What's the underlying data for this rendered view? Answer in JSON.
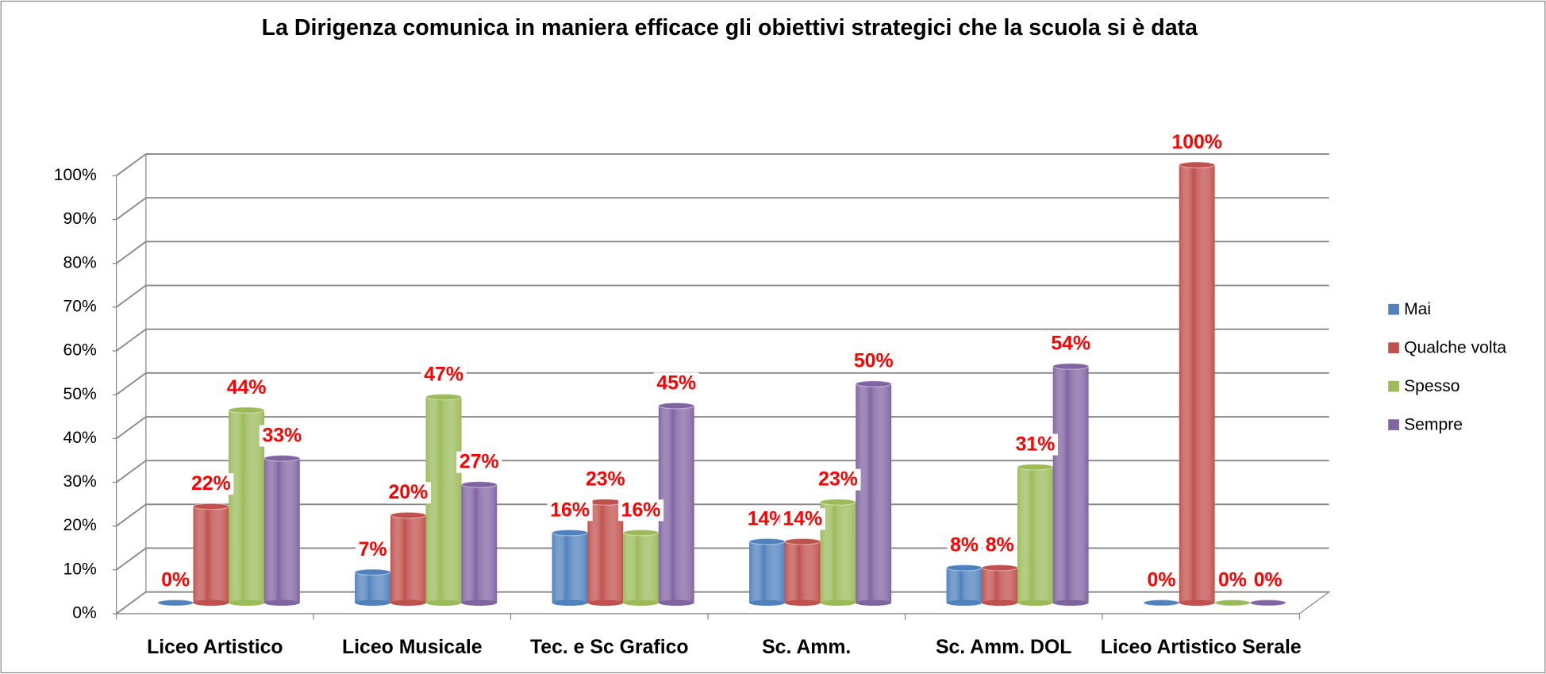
{
  "chart_data": {
    "type": "bar",
    "title": "La Dirigenza comunica in maniera efficace gli obiettivi strategici che la scuola si è data",
    "categories": [
      "Liceo Artistico",
      "Liceo Musicale",
      "Tec.  e Sc Grafico",
      "Sc. Amm.",
      "Sc. Amm. DOL",
      "Liceo Artistico Serale"
    ],
    "series": [
      {
        "name": "Mai",
        "color": "#4f81bd",
        "values": [
          0,
          7,
          16,
          14,
          8,
          0
        ],
        "value_labels": [
          "0%",
          "7%",
          "16%",
          "14%",
          "8%",
          "0%"
        ]
      },
      {
        "name": "Qualche volta",
        "color": "#c0504d",
        "values": [
          22,
          20,
          23,
          14,
          8,
          100
        ],
        "value_labels": [
          "22%",
          "20%",
          "23%",
          "14%",
          "8%",
          "100%"
        ]
      },
      {
        "name": "Spesso",
        "color": "#9bbb59",
        "values": [
          44,
          47,
          16,
          23,
          31,
          0
        ],
        "value_labels": [
          "44%",
          "47%",
          "16%",
          "23%",
          "31%",
          "0%"
        ]
      },
      {
        "name": "Sempre",
        "color": "#8064a2",
        "values": [
          33,
          27,
          45,
          50,
          54,
          0
        ],
        "value_labels": [
          "33%",
          "27%",
          "45%",
          "50%",
          "54%",
          "0%"
        ]
      }
    ],
    "ylim": [
      0,
      100
    ],
    "yticks": [
      {
        "value": 0,
        "label": "0%"
      },
      {
        "value": 10,
        "label": "10%"
      },
      {
        "value": 20,
        "label": "20%"
      },
      {
        "value": 30,
        "label": "30%"
      },
      {
        "value": 40,
        "label": "40%"
      },
      {
        "value": 50,
        "label": "50%"
      },
      {
        "value": 60,
        "label": "60%"
      },
      {
        "value": 70,
        "label": "70%"
      },
      {
        "value": 80,
        "label": "80%"
      },
      {
        "value": 90,
        "label": "90%"
      },
      {
        "value": 100,
        "label": "100%"
      }
    ],
    "grid": true,
    "legend": "right"
  }
}
